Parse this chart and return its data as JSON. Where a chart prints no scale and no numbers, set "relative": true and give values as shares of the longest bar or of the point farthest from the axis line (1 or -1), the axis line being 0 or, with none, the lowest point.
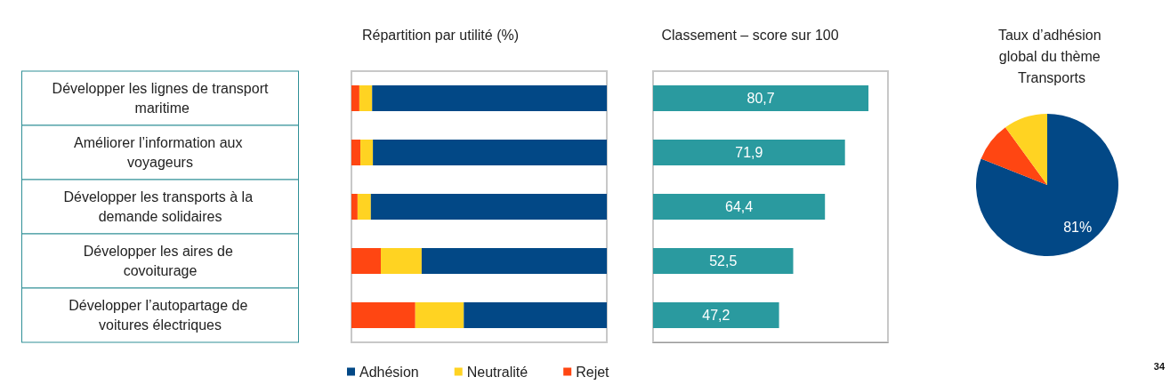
{
  "chart_data": [
    {
      "type": "bar",
      "title": "Répartition par utilité (%)",
      "orientation": "horizontal",
      "stacked": true,
      "relative": true,
      "tick_labels": "y",
      "legend": "bottom",
      "categories": [
        "Développer les lignes de transport maritime",
        "Améliorer l’information aux voyageurs",
        "Développer les transports à la demande solidaires",
        "Développer les aires de covoiturage",
        "Développer l’autopartage de voitures électriques"
      ],
      "series": [
        {
          "name": "Rejet",
          "color": "#ff4612",
          "values": [
            0.031,
            0.035,
            0.024,
            0.115,
            0.25
          ]
        },
        {
          "name": "Neutralité",
          "color": "#ffd322",
          "values": [
            0.05,
            0.049,
            0.052,
            0.16,
            0.19
          ]
        },
        {
          "name": "Adhésion",
          "color": "#024886",
          "values": [
            0.919,
            0.916,
            0.924,
            0.725,
            0.56
          ]
        }
      ]
    },
    {
      "type": "bar",
      "title": "Classement – score sur 100",
      "orientation": "horizontal",
      "tick_labels": false,
      "xlim": [
        0,
        88
      ],
      "values": [
        80.7,
        71.9,
        64.4,
        52.5,
        47.2
      ],
      "color": "#2a9a9f",
      "categories": [
        null,
        null,
        null,
        null,
        null
      ],
      "value_labels": [
        "80,7",
        "71,9",
        "64,4",
        "52,5",
        "47,2"
      ]
    },
    {
      "type": "pie",
      "title": "Taux d’adhésion global du thème Transports",
      "categories": [
        null,
        null,
        null
      ],
      "values": [
        81,
        9,
        10
      ],
      "colors": [
        "#024886",
        "#ff4612",
        "#ffd322"
      ],
      "value_labels": [
        "81%",
        null,
        null
      ],
      "annotations": [
        "34"
      ]
    }
  ]
}
